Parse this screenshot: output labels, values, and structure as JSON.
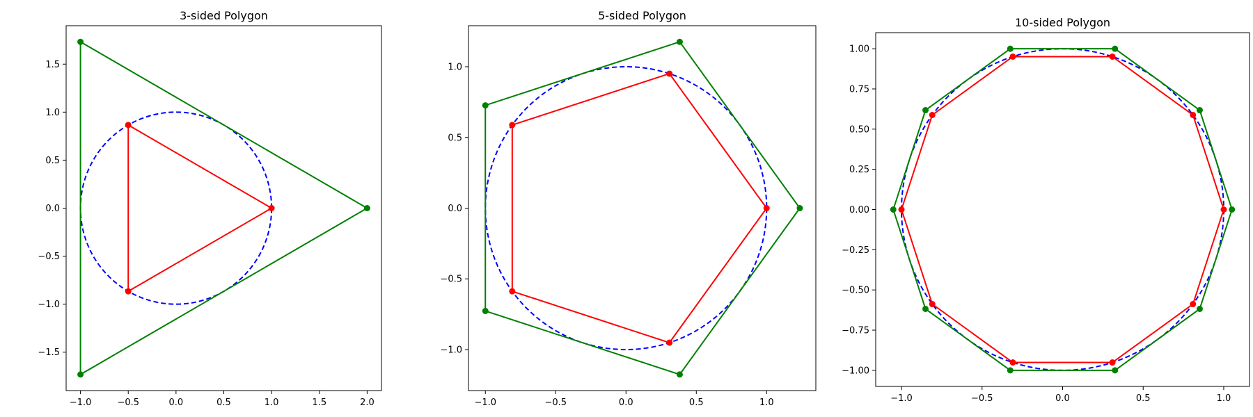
{
  "chart_data": [
    {
      "type": "line",
      "title": "3-sided Polygon",
      "xlim": [
        -1.15,
        2.15
      ],
      "ylim": [
        -1.9,
        1.9
      ],
      "xticks": [
        -1.0,
        -0.5,
        0.0,
        0.5,
        1.0,
        1.5,
        2.0
      ],
      "xtick_labels": [
        "−1.0",
        "−0.5",
        "0.0",
        "0.5",
        "1.0",
        "1.5",
        "2.0"
      ],
      "yticks": [
        -1.5,
        -1.0,
        -0.5,
        0.0,
        0.5,
        1.0,
        1.5
      ],
      "ytick_labels": [
        "−1.5",
        "−1.0",
        "−0.5",
        "0.0",
        "0.5",
        "1.0",
        "1.5"
      ],
      "grid": false,
      "series": [
        {
          "role": "unit-circle",
          "style": "dashed",
          "color": "#0000ff",
          "center": [
            0,
            0
          ],
          "radius": 1.0
        },
        {
          "role": "inscribed-polygon",
          "color": "#ff0000",
          "x": [
            1.0,
            -0.5,
            -0.5
          ],
          "y": [
            0.0,
            0.866,
            -0.866
          ]
        },
        {
          "role": "circumscribed-polygon",
          "color": "#008000",
          "x": [
            2.0,
            -1.0,
            -1.0
          ],
          "y": [
            0.0,
            1.732,
            -1.732
          ]
        }
      ]
    },
    {
      "type": "line",
      "title": "5-sided Polygon",
      "xlim": [
        -1.12,
        1.35
      ],
      "ylim": [
        -1.29,
        1.29
      ],
      "xticks": [
        -1.0,
        -0.5,
        0.0,
        0.5,
        1.0
      ],
      "xtick_labels": [
        "−1.0",
        "−0.5",
        "0.0",
        "0.5",
        "1.0"
      ],
      "yticks": [
        -1.0,
        -0.5,
        0.0,
        0.5,
        1.0
      ],
      "ytick_labels": [
        "−1.0",
        "−0.5",
        "0.0",
        "0.5",
        "1.0"
      ],
      "grid": false,
      "series": [
        {
          "role": "unit-circle",
          "style": "dashed",
          "color": "#0000ff",
          "center": [
            0,
            0
          ],
          "radius": 1.0
        },
        {
          "role": "inscribed-polygon",
          "color": "#ff0000",
          "x": [
            1.0,
            0.309,
            -0.809,
            -0.809,
            0.309
          ],
          "y": [
            0.0,
            0.951,
            0.588,
            -0.588,
            -0.951
          ]
        },
        {
          "role": "circumscribed-polygon",
          "color": "#008000",
          "x": [
            1.236,
            0.382,
            -1.0,
            -1.0,
            0.382
          ],
          "y": [
            0.0,
            1.176,
            0.727,
            -0.727,
            -1.176
          ]
        }
      ]
    },
    {
      "type": "line",
      "title": "10-sided Polygon",
      "xlim": [
        -1.16,
        1.16
      ],
      "ylim": [
        -1.1,
        1.1
      ],
      "xticks": [
        -1.0,
        -0.5,
        0.0,
        0.5,
        1.0
      ],
      "xtick_labels": [
        "−1.0",
        "−0.5",
        "0.0",
        "0.5",
        "1.0"
      ],
      "yticks": [
        -1.0,
        -0.75,
        -0.5,
        -0.25,
        0.0,
        0.25,
        0.5,
        0.75,
        1.0
      ],
      "ytick_labels": [
        "−1.00",
        "−0.75",
        "−0.50",
        "−0.25",
        "0.00",
        "0.25",
        "0.50",
        "0.75",
        "1.00"
      ],
      "grid": false,
      "series": [
        {
          "role": "unit-circle",
          "style": "dashed",
          "color": "#0000ff",
          "center": [
            0,
            0
          ],
          "radius": 1.0
        },
        {
          "role": "inscribed-polygon",
          "color": "#ff0000",
          "x": [
            1.0,
            0.809,
            0.309,
            -0.309,
            -0.809,
            -1.0,
            -0.809,
            -0.309,
            0.309,
            0.809
          ],
          "y": [
            0.0,
            0.588,
            0.951,
            0.951,
            0.588,
            0.0,
            -0.588,
            -0.951,
            -0.951,
            -0.588
          ]
        },
        {
          "role": "circumscribed-polygon",
          "color": "#008000",
          "x": [
            1.051,
            0.851,
            0.325,
            -0.325,
            -0.851,
            -1.051,
            -0.851,
            -0.325,
            0.325,
            0.851
          ],
          "y": [
            0.0,
            0.618,
            1.0,
            1.0,
            0.618,
            0.0,
            -0.618,
            -1.0,
            -1.0,
            -0.618
          ]
        }
      ]
    }
  ]
}
